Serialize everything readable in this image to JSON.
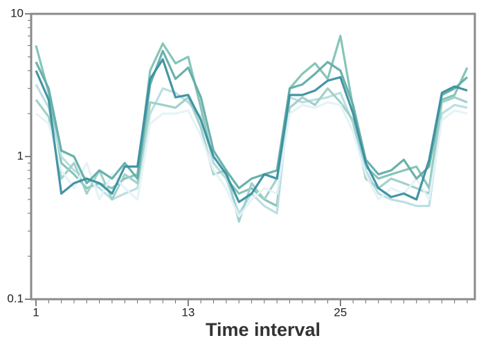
{
  "chart_data": {
    "type": "line",
    "x_label": "Time interval",
    "log_y": true,
    "x": [
      1,
      2,
      3,
      4,
      5,
      6,
      7,
      8,
      9,
      10,
      11,
      12,
      13,
      14,
      15,
      16,
      17,
      18,
      19,
      20,
      21,
      22,
      23,
      24,
      25,
      26,
      27,
      28,
      29,
      30,
      31,
      32,
      33,
      34,
      35
    ],
    "xlim": [
      0.62,
      35.6
    ],
    "xticks": [
      1,
      13,
      25
    ],
    "ylim": [
      0.1,
      10
    ],
    "yticks": [
      0.1,
      1,
      10
    ],
    "series": [
      {
        "color": "#7fc2b4",
        "values": [
          6.0,
          2.8,
          0.9,
          0.75,
          0.6,
          0.65,
          0.6,
          0.7,
          0.75,
          4.0,
          6.2,
          4.5,
          5.0,
          2.2,
          0.9,
          0.7,
          0.55,
          0.6,
          0.5,
          0.45,
          3.0,
          3.8,
          4.5,
          3.5,
          7.0,
          2.2,
          0.85,
          0.7,
          0.75,
          0.8,
          0.85,
          0.6,
          2.5,
          2.7,
          4.2
        ]
      },
      {
        "color": "#b8dde0",
        "values": [
          3.2,
          2.2,
          1.0,
          0.8,
          0.7,
          0.6,
          0.5,
          0.55,
          0.6,
          2.0,
          3.0,
          2.8,
          2.4,
          1.9,
          0.9,
          0.7,
          0.4,
          0.55,
          0.45,
          0.4,
          2.6,
          2.4,
          2.5,
          2.6,
          2.8,
          1.7,
          0.8,
          0.55,
          0.5,
          0.48,
          0.45,
          0.45,
          2.0,
          2.3,
          2.2
        ]
      },
      {
        "color": "#9ccfc8",
        "values": [
          2.5,
          1.9,
          0.7,
          0.9,
          0.55,
          0.8,
          0.5,
          0.75,
          0.65,
          2.4,
          2.3,
          2.2,
          2.6,
          1.6,
          0.75,
          0.8,
          0.35,
          0.65,
          0.5,
          0.7,
          2.2,
          2.6,
          2.3,
          3.0,
          2.4,
          1.8,
          0.7,
          0.6,
          0.7,
          0.65,
          0.6,
          0.55,
          2.4,
          2.6,
          2.4
        ]
      },
      {
        "color": "#e4f2f6",
        "values": [
          2.0,
          1.7,
          0.8,
          0.6,
          0.9,
          0.5,
          0.75,
          0.6,
          0.5,
          1.7,
          2.0,
          2.0,
          2.1,
          1.4,
          0.8,
          0.6,
          0.38,
          0.5,
          0.6,
          0.55,
          2.0,
          2.3,
          2.2,
          2.4,
          2.3,
          1.5,
          0.75,
          0.5,
          0.6,
          0.55,
          0.7,
          0.5,
          1.8,
          2.1,
          2.0
        ]
      },
      {
        "color": "#62ada6",
        "values": [
          4.6,
          3.0,
          1.1,
          1.0,
          0.65,
          0.8,
          0.7,
          0.9,
          0.7,
          3.2,
          5.5,
          3.5,
          4.2,
          2.6,
          1.1,
          0.8,
          0.6,
          0.7,
          0.75,
          0.8,
          3.0,
          3.2,
          3.8,
          4.6,
          4.0,
          2.3,
          0.95,
          0.75,
          0.8,
          0.95,
          0.7,
          0.85,
          2.7,
          3.0,
          3.6
        ]
      },
      {
        "color": "#3a8fa0",
        "values": [
          4.0,
          2.5,
          0.55,
          0.65,
          0.7,
          0.65,
          0.55,
          0.85,
          0.85,
          3.5,
          4.8,
          2.6,
          2.7,
          1.8,
          1.0,
          0.75,
          0.48,
          0.55,
          0.75,
          0.7,
          2.7,
          2.7,
          2.9,
          3.4,
          3.6,
          2.0,
          0.9,
          0.6,
          0.52,
          0.55,
          0.5,
          0.95,
          2.8,
          3.1,
          2.9
        ]
      }
    ]
  }
}
